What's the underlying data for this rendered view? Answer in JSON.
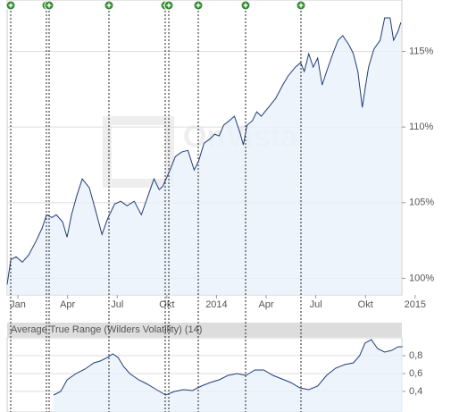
{
  "chart_data": [
    {
      "type": "line",
      "watermark": "OnVista",
      "xlim": [
        -0.65,
        23.2
      ],
      "xticks": [
        {
          "value": 0,
          "label": "Jan"
        },
        {
          "value": 3,
          "label": "Apr"
        },
        {
          "value": 6,
          "label": "Jul"
        },
        {
          "value": 9,
          "label": "Okt"
        },
        {
          "value": 12,
          "label": "2014"
        },
        {
          "value": 15,
          "label": "Apr"
        },
        {
          "value": 18,
          "label": "Jul"
        },
        {
          "value": 21,
          "label": "Okt"
        },
        {
          "value": 24,
          "label": "2015"
        }
      ],
      "ylim": [
        98.9,
        118.4
      ],
      "yticks": [
        {
          "value": 100,
          "label": "100%"
        },
        {
          "value": 105,
          "label": "105%"
        },
        {
          "value": 110,
          "label": "110%"
        },
        {
          "value": 115,
          "label": "115%"
        }
      ],
      "grid": true,
      "series": [
        {
          "color": "#1f3d7a",
          "x": [
            -0.65,
            -0.43,
            -0.11,
            0.27,
            0.65,
            1.08,
            1.46,
            1.73,
            2.05,
            2.32,
            2.7,
            2.97,
            3.24,
            3.57,
            3.89,
            4.32,
            4.76,
            5.08,
            5.41,
            5.84,
            6.22,
            6.59,
            7.03,
            7.46,
            7.84,
            8.22,
            8.54,
            8.76,
            9.19,
            9.51,
            9.89,
            10.27,
            10.65,
            10.92,
            11.24,
            11.62,
            11.89,
            12.16,
            12.43,
            12.76,
            13.08,
            13.41,
            13.62,
            13.84,
            14.16,
            14.43,
            14.7,
            15.14,
            15.57,
            16.0,
            16.32,
            16.76,
            17.08,
            17.3,
            17.57,
            17.84,
            18.11,
            18.38,
            18.65,
            19.03,
            19.35,
            19.62,
            20.0,
            20.27,
            20.54,
            20.81,
            20.97,
            21.19,
            21.51,
            21.89,
            22.16,
            22.49,
            22.7,
            22.97,
            23.14
          ],
          "values": [
            99.59,
            101.24,
            101.42,
            101.07,
            101.54,
            102.43,
            103.31,
            104.2,
            104.02,
            104.2,
            103.73,
            102.72,
            104.2,
            105.5,
            106.57,
            105.98,
            104.2,
            102.9,
            103.91,
            104.91,
            105.09,
            104.79,
            105.09,
            104.2,
            105.38,
            106.57,
            105.86,
            106.09,
            107.16,
            108.05,
            108.34,
            108.46,
            107.16,
            107.75,
            108.93,
            109.23,
            109.53,
            109.41,
            110.12,
            110.41,
            110.71,
            109.64,
            108.82,
            110.12,
            110.41,
            111.01,
            110.71,
            111.3,
            111.89,
            112.78,
            113.37,
            113.96,
            114.26,
            113.67,
            114.85,
            113.96,
            114.56,
            112.78,
            113.67,
            114.85,
            115.74,
            116.04,
            115.44,
            114.85,
            113.67,
            111.3,
            112.49,
            113.96,
            115.15,
            115.74,
            117.22,
            117.22,
            115.74,
            116.33,
            116.92
          ]
        }
      ]
    },
    {
      "type": "line",
      "title": "Average True Range (Wilders Volatility) (14)",
      "xlim": [
        -0.65,
        23.2
      ],
      "ylim": [
        0.17,
        1.0
      ],
      "yticks": [
        {
          "value": 0.4,
          "label": "0,4"
        },
        {
          "value": 0.6,
          "label": "0,6"
        },
        {
          "value": 0.8,
          "label": "0,8"
        }
      ],
      "grid": true,
      "series": [
        {
          "color": "#1f3d7a",
          "x": [
            2.16,
            2.59,
            2.97,
            3.51,
            4.05,
            4.59,
            4.97,
            5.41,
            5.73,
            6.05,
            6.38,
            6.76,
            7.3,
            7.84,
            8.38,
            8.92,
            9.46,
            10.0,
            10.54,
            11.08,
            11.62,
            12.16,
            12.7,
            13.24,
            13.78,
            14.32,
            14.86,
            15.41,
            15.95,
            16.49,
            17.03,
            17.57,
            18.11,
            18.65,
            19.19,
            19.73,
            20.27,
            20.65,
            20.97,
            21.35,
            21.73,
            22.16,
            22.59,
            22.97,
            23.24
          ],
          "values": [
            0.36,
            0.4,
            0.53,
            0.6,
            0.65,
            0.72,
            0.74,
            0.78,
            0.82,
            0.78,
            0.68,
            0.6,
            0.53,
            0.48,
            0.42,
            0.36,
            0.4,
            0.42,
            0.41,
            0.46,
            0.5,
            0.53,
            0.58,
            0.6,
            0.58,
            0.64,
            0.64,
            0.58,
            0.54,
            0.5,
            0.44,
            0.42,
            0.46,
            0.58,
            0.66,
            0.7,
            0.72,
            0.8,
            0.94,
            0.98,
            0.88,
            0.84,
            0.86,
            0.9,
            0.9
          ]
        }
      ]
    }
  ]
}
